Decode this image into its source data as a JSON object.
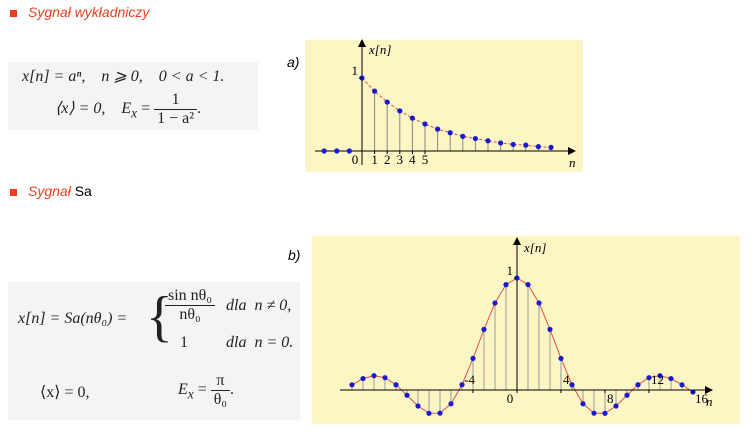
{
  "sections": [
    {
      "title": [
        "Sygnał wykładniczy"
      ],
      "formula": {
        "line1": "x[n] = aⁿ,    n ⩾ 0,    0 < a < 1.",
        "line2_prefix": "⟨x⟩ = 0,    E",
        "line2_sub": "x",
        "line2_eq": "=",
        "frac_num": "1",
        "frac_den": "1 − a²",
        "line2_end": "."
      },
      "plot": {
        "label": "a)",
        "y_label": "x[n]",
        "x_label": "n",
        "x": [
          -3,
          -2,
          -1,
          0,
          1,
          2,
          3,
          4,
          5,
          6,
          7,
          8,
          9,
          10,
          11,
          12,
          13,
          14,
          15
        ],
        "values": [
          0,
          0,
          0,
          1,
          0.82,
          0.67,
          0.55,
          0.45,
          0.37,
          0.3,
          0.25,
          0.2,
          0.17,
          0.14,
          0.11,
          0.09,
          0.08,
          0.06,
          0.05
        ],
        "xticks": [
          0,
          1,
          2,
          3,
          4,
          5
        ],
        "yticks": [
          1
        ]
      }
    },
    {
      "title": [
        "Sygnał",
        "Sa"
      ],
      "formula": {
        "lhs": "x[n] = Sa(nθ₀) =",
        "case1_num": "sin nθ₀",
        "case1_den": "nθ₀",
        "case1_cond": "dla  n ≠ 0,",
        "case2_val": "1",
        "case2_cond": "dla  n = 0.",
        "mean": "⟨x⟩ = 0,",
        "energy_prefix": "E",
        "energy_sub": "x",
        "energy_eq": "=",
        "frac_num": "π",
        "frac_den": "θ₀",
        "energy_end": "."
      },
      "plot": {
        "label": "b)",
        "y_label": "x[n]",
        "x_label": "n",
        "x": [
          -15,
          -14,
          -13,
          -12,
          -11,
          -10,
          -9,
          -8,
          -7,
          -6,
          -5,
          -4,
          -3,
          -2,
          -1,
          0,
          1,
          2,
          3,
          4,
          5,
          6,
          7,
          8,
          9,
          10,
          11,
          12,
          13,
          14,
          15,
          16
        ],
        "values": [
          0.046,
          0.102,
          0.128,
          0.11,
          0.047,
          -0.047,
          -0.143,
          -0.208,
          -0.207,
          -0.123,
          0.047,
          0.282,
          0.541,
          0.777,
          0.941,
          1,
          0.941,
          0.777,
          0.541,
          0.282,
          0.047,
          -0.123,
          -0.207,
          -0.208,
          -0.143,
          -0.047,
          0.047,
          0.11,
          0.128,
          0.102,
          0.046,
          -0.018
        ],
        "xticks": [
          -4,
          0,
          4,
          8,
          12,
          16
        ],
        "yticks": [
          1
        ]
      }
    }
  ]
}
